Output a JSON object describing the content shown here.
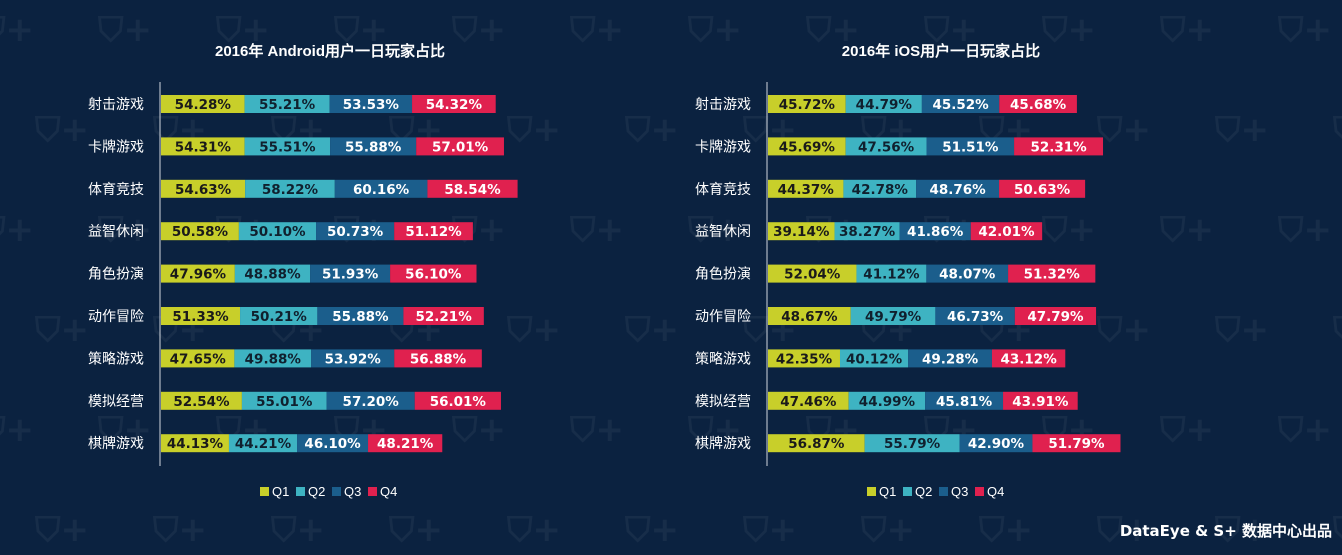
{
  "chart_data": [
    {
      "type": "bar",
      "stacked": true,
      "orientation": "horizontal",
      "title": "2016年 Android用户一日玩家占比",
      "categories": [
        "射击游戏",
        "卡牌游戏",
        "体育竞技",
        "益智休闲",
        "角色扮演",
        "动作冒险",
        "策略游戏",
        "模拟经营",
        "棋牌游戏"
      ],
      "series": [
        {
          "name": "Q1",
          "color": "#c8cf2a",
          "values": [
            54.28,
            54.31,
            54.63,
            50.58,
            47.96,
            51.33,
            47.65,
            52.54,
            44.13
          ],
          "labels": [
            "54.28%",
            "54.31%",
            "54.63%",
            "50.58%",
            "47.96%",
            "51.33%",
            "47.65%",
            "52.54%",
            "44.13%"
          ]
        },
        {
          "name": "Q2",
          "color": "#3eb3c2",
          "values": [
            55.21,
            55.51,
            58.22,
            50.1,
            48.88,
            50.21,
            49.88,
            55.01,
            44.21
          ],
          "labels": [
            "55.21%",
            "55.51%",
            "58.22%",
            "50.10%",
            "48.88%",
            "50.21%",
            "49.88%",
            "55.01%",
            "44.21%"
          ]
        },
        {
          "name": "Q3",
          "color": "#1b5e8c",
          "values": [
            53.53,
            55.88,
            60.16,
            50.73,
            51.93,
            55.88,
            53.92,
            57.2,
            46.1
          ],
          "labels": [
            "53.53%",
            "55.88%",
            "60.16%",
            "50.73%",
            "51.93%",
            "55.88%",
            "53.92%",
            "57.20%",
            "46.10%"
          ]
        },
        {
          "name": "Q4",
          "color": "#e0214f",
          "values": [
            54.32,
            57.01,
            58.54,
            51.12,
            56.1,
            52.21,
            56.88,
            56.01,
            48.21
          ],
          "labels": [
            "54.32%",
            "57.01%",
            "58.54%",
            "51.12%",
            "56.10%",
            "52.21%",
            "56.88%",
            "56.01%",
            "48.21%"
          ]
        }
      ],
      "legend": "bottom"
    },
    {
      "type": "bar",
      "stacked": true,
      "orientation": "horizontal",
      "title": "2016年 iOS用户一日玩家占比",
      "categories": [
        "射击游戏",
        "卡牌游戏",
        "体育竞技",
        "益智休闲",
        "角色扮演",
        "动作冒险",
        "策略游戏",
        "模拟经营",
        "棋牌游戏"
      ],
      "series": [
        {
          "name": "Q1",
          "color": "#c8cf2a",
          "values": [
            45.72,
            45.69,
            44.37,
            39.14,
            52.04,
            48.67,
            42.35,
            47.46,
            56.87
          ],
          "labels": [
            "45.72%",
            "45.69%",
            "44.37%",
            "39.14%",
            "52.04%",
            "48.67%",
            "42.35%",
            "47.46%",
            "56.87%"
          ]
        },
        {
          "name": "Q2",
          "color": "#3eb3c2",
          "values": [
            44.79,
            47.56,
            42.78,
            38.27,
            41.12,
            49.79,
            40.12,
            44.99,
            55.79
          ],
          "labels": [
            "44.79%",
            "47.56%",
            "42.78%",
            "38.27%",
            "41.12%",
            "49.79%",
            "40.12%",
            "44.99%",
            "55.79%"
          ]
        },
        {
          "name": "Q3",
          "color": "#1b5e8c",
          "values": [
            45.52,
            51.51,
            48.76,
            41.86,
            48.07,
            46.73,
            49.28,
            45.81,
            42.9
          ],
          "labels": [
            "45.52%",
            "51.51%",
            "48.76%",
            "41.86%",
            "48.07%",
            "46.73%",
            "49.28%",
            "45.81%",
            "42.90%"
          ]
        },
        {
          "name": "Q4",
          "color": "#e0214f",
          "values": [
            45.68,
            52.31,
            50.63,
            42.01,
            51.32,
            47.79,
            43.12,
            43.91,
            51.79
          ],
          "labels": [
            "45.68%",
            "52.31%",
            "50.63%",
            "42.01%",
            "51.32%",
            "47.79%",
            "43.12%",
            "43.91%",
            "51.79%"
          ]
        }
      ],
      "legend": "bottom"
    }
  ],
  "footer": "DataEye & S+ 数据中心出品"
}
